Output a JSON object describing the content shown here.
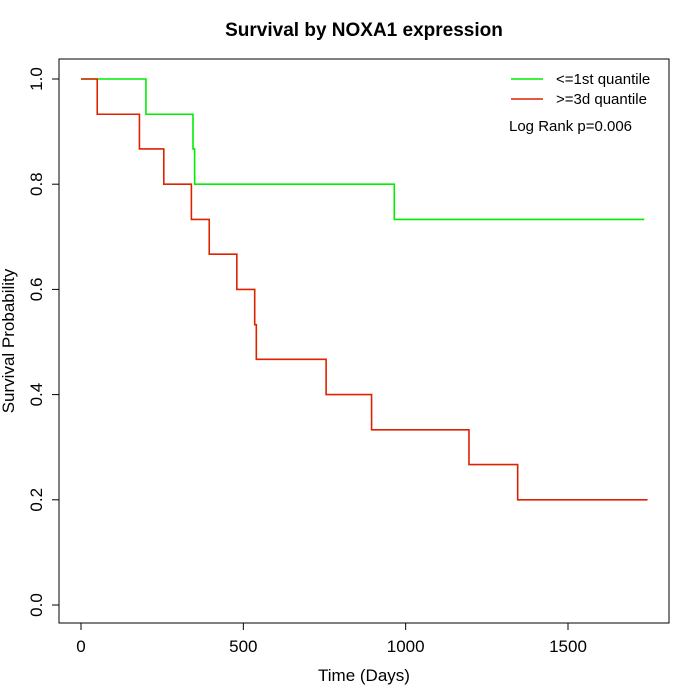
{
  "chart_data": {
    "type": "line",
    "step": true,
    "title": "Survival by NOXA1 expression",
    "xlabel": "Time (Days)",
    "ylabel": "Survival Probability",
    "xlim": [
      0,
      1800
    ],
    "ylim": [
      0,
      1
    ],
    "xticks": [
      0,
      500,
      1000,
      1500
    ],
    "yticks": [
      0.0,
      0.2,
      0.4,
      0.6,
      0.8,
      1.0
    ],
    "xtick_labels": [
      "0",
      "500",
      "1000",
      "1500"
    ],
    "ytick_labels": [
      "0.0",
      "0.2",
      "0.4",
      "0.6",
      "0.8",
      "1.0"
    ],
    "grid": false,
    "legend_position": "top-right",
    "annotation": "Log Rank p=0.006",
    "series": [
      {
        "name": "<=1st quantile",
        "color": "#00ee00",
        "x": [
          0,
          200,
          345,
          350,
          965,
          1735
        ],
        "y": [
          1.0,
          0.933,
          0.867,
          0.8,
          0.733,
          0.733
        ]
      },
      {
        "name": ">=3d quantile",
        "color": "#dd2200",
        "x": [
          0,
          50,
          180,
          255,
          340,
          395,
          480,
          535,
          540,
          755,
          895,
          1195,
          1345,
          1745
        ],
        "y": [
          1.0,
          0.933,
          0.867,
          0.8,
          0.733,
          0.667,
          0.6,
          0.533,
          0.467,
          0.4,
          0.333,
          0.267,
          0.2,
          0.2
        ]
      }
    ]
  }
}
